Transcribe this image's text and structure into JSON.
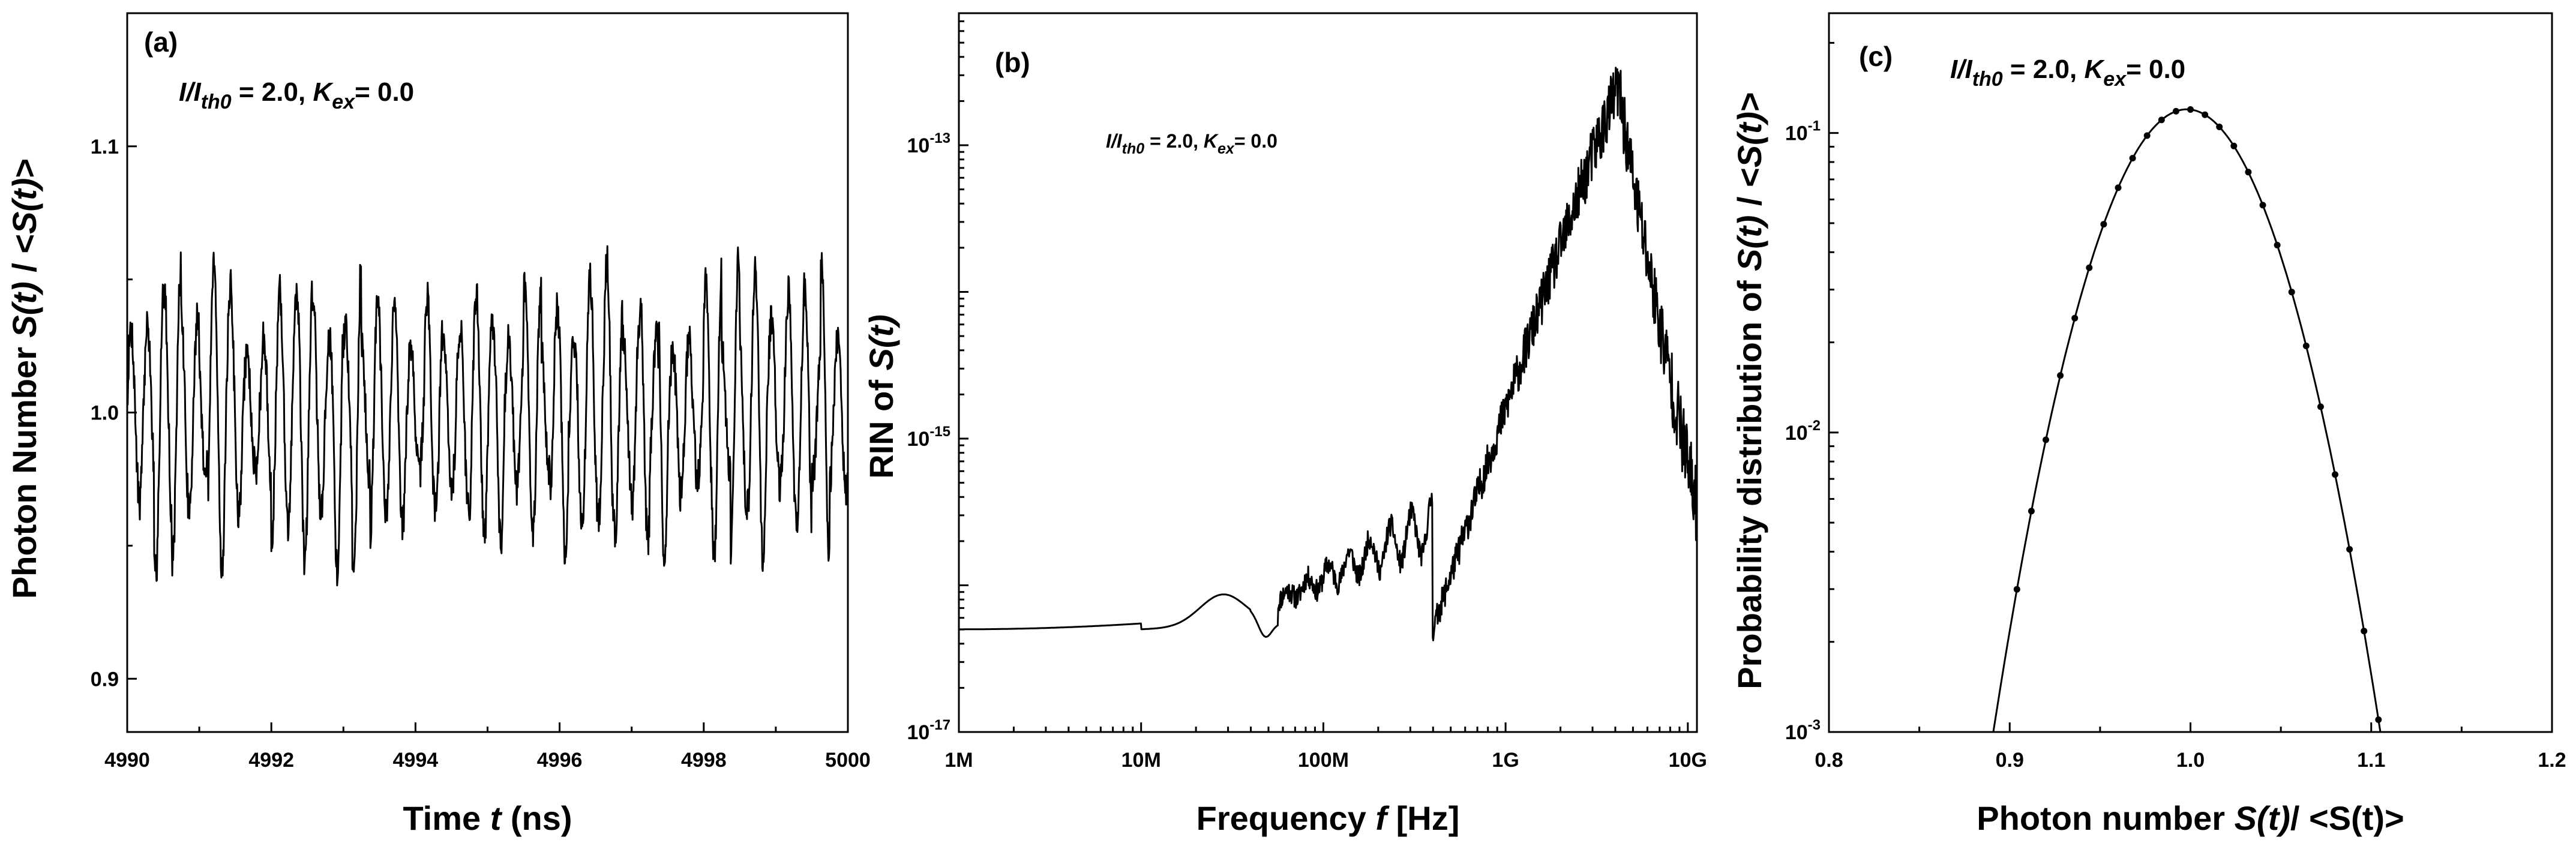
{
  "chart_data": [
    {
      "type": "line",
      "panel_label": "(a)",
      "annotation": {
        "main": "I/I",
        "sub": "th0",
        "mid": " = 2.0, ",
        "k": "K",
        "ksub": "ex",
        "end": "= 0.0"
      },
      "xlabel": {
        "pre": "Time ",
        "var": "t",
        "post": " (ns)"
      },
      "ylabel": {
        "pre": "Photon Number ",
        "var": "S(t)",
        "mid": " / <",
        "var2": "S(t)",
        "post": ">"
      },
      "xlim": [
        4990,
        5000
      ],
      "ylim": [
        0.88,
        1.15
      ],
      "xticks": [
        4990,
        4992,
        4994,
        4996,
        4998,
        5000
      ],
      "xtick_labels": [
        "4990",
        "4992",
        "4994",
        "4996",
        "4998",
        "5000"
      ],
      "yticks": [
        0.9,
        1.0,
        1.1
      ],
      "ytick_labels": [
        "0.9",
        "1.0",
        "1.1"
      ],
      "series": [
        {
          "name": "S(t)/<S(t)>",
          "generator": "oscillation",
          "period_ns": 0.23,
          "points": 1600,
          "seed": 7,
          "mean": 1.0,
          "amplitude": 0.04
        }
      ]
    },
    {
      "type": "line",
      "panel_label": "(b)",
      "annotation": {
        "main": "I/I",
        "sub": "th0",
        "mid": " = 2.0, ",
        "k": "K",
        "ksub": "ex",
        "end": "= 0.0"
      },
      "xlabel": {
        "pre": "Frequency ",
        "var": "f",
        "post": " [Hz]"
      },
      "ylabel": {
        "pre": "RIN of ",
        "var": "S(t)",
        "mid": "",
        "var2": "",
        "post": ""
      },
      "xscale": "log",
      "yscale": "log",
      "xlim_log10": [
        6,
        10.05
      ],
      "ylim_log10": [
        -17,
        -12.1
      ],
      "xticks_log10": [
        6,
        7,
        8,
        9,
        10
      ],
      "xtick_labels": [
        "1M",
        "10M",
        "100M",
        "1G",
        "10G"
      ],
      "yticks_log10": [
        -17,
        -15,
        -13
      ],
      "ytick_base": "10",
      "ytick_exponents": [
        "-17",
        "-15",
        "-13"
      ],
      "series": [
        {
          "name": "RIN",
          "generator": "rin_spectrum",
          "points": 1500,
          "seed": 11,
          "floor_log10": -16.3,
          "peak_freq_log10": 9.62,
          "peak_log10": -12.6
        }
      ]
    },
    {
      "type": "line",
      "panel_label": "(c)",
      "annotation": {
        "main": "I/I",
        "sub": "th0",
        "mid": " = 2.0, ",
        "k": "K",
        "ksub": "ex",
        "end": "= 0.0"
      },
      "xlabel": {
        "pre": "Photon number ",
        "var": "S(t)",
        "post": "/ <S(t)>"
      },
      "ylabel": {
        "pre": "Probability distribution of ",
        "var": "S(t)",
        "mid": " / <",
        "var2": "S(t)",
        "post": ">"
      },
      "yscale": "log",
      "xlim": [
        0.8,
        1.2
      ],
      "ylim_log10": [
        -3,
        -0.6
      ],
      "xticks": [
        0.8,
        0.9,
        1.0,
        1.1,
        1.2
      ],
      "xtick_labels": [
        "0.8",
        "0.9",
        "1.0",
        "1.1",
        "1.2"
      ],
      "yticks_log10": [
        -3,
        -2,
        -1
      ],
      "ytick_base": "10",
      "ytick_exponents": [
        "-3",
        "-2",
        "-1"
      ],
      "series": [
        {
          "name": "distribution",
          "generator": "gaussian",
          "points_x_start": 0.904,
          "points_x_step": 0.008,
          "points_count": 26,
          "center": 0.998,
          "peak_value": 0.12,
          "sigma": 0.0346
        }
      ]
    }
  ]
}
